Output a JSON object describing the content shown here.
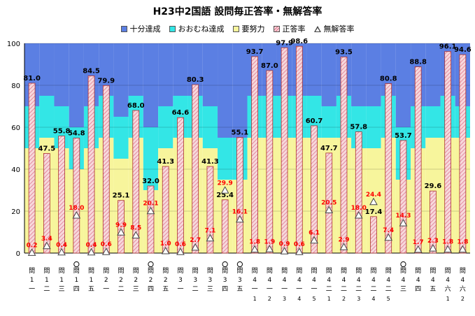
{
  "chart_data": {
    "type": "bar",
    "title": "H23中2国語  設問毎正答率・無解答率",
    "legend": [
      "十分達成",
      "おおむね達成",
      "要努力",
      "正答率",
      "無解答率"
    ],
    "colors": {
      "十分達成": "#5b7fe3",
      "おおむね達成": "#33e6e6",
      "要努力": "#f7f59c",
      "正答率_fill": "#f6d9dc",
      "正答率_stripe": "#e06a86",
      "無解答率": "#444444",
      "無解答率_label": "#ff0000"
    },
    "ylim": [
      0,
      100
    ],
    "yticks": [
      0,
      20,
      40,
      60,
      80,
      100
    ],
    "categories": [
      {
        "label": [
          "問",
          "1",
          "一"
        ],
        "circle": false
      },
      {
        "label": [
          "問",
          "1",
          "二"
        ],
        "circle": false
      },
      {
        "label": [
          "問",
          "1",
          "三"
        ],
        "circle": false
      },
      {
        "label": [
          "問",
          "1",
          "四"
        ],
        "circle": true
      },
      {
        "label": [
          "問",
          "1",
          "五"
        ],
        "circle": false
      },
      {
        "label": [
          "問",
          "2",
          "一"
        ],
        "circle": false
      },
      {
        "label": [
          "問",
          "2",
          "二"
        ],
        "circle": false
      },
      {
        "label": [
          "問",
          "2",
          "三"
        ],
        "circle": false
      },
      {
        "label": [
          "問",
          "2",
          "四"
        ],
        "circle": true
      },
      {
        "label": [
          "問",
          "2",
          "五"
        ],
        "circle": false
      },
      {
        "label": [
          "問",
          "3",
          "一"
        ],
        "circle": false
      },
      {
        "label": [
          "問",
          "3",
          "二"
        ],
        "circle": false
      },
      {
        "label": [
          "問",
          "3",
          "三"
        ],
        "circle": false
      },
      {
        "label": [
          "問",
          "3",
          "四"
        ],
        "circle": true
      },
      {
        "label": [
          "問",
          "3",
          "五"
        ],
        "circle": true
      },
      {
        "label": [
          "問",
          "4",
          "一",
          "1"
        ],
        "circle": false
      },
      {
        "label": [
          "問",
          "4",
          "一",
          "2"
        ],
        "circle": false
      },
      {
        "label": [
          "問",
          "4",
          "一",
          "3"
        ],
        "circle": false
      },
      {
        "label": [
          "問",
          "4",
          "一",
          "4"
        ],
        "circle": false
      },
      {
        "label": [
          "問",
          "4",
          "一",
          "5"
        ],
        "circle": false
      },
      {
        "label": [
          "問",
          "4",
          "二",
          "1"
        ],
        "circle": false
      },
      {
        "label": [
          "問",
          "4",
          "二",
          "2"
        ],
        "circle": false
      },
      {
        "label": [
          "問",
          "4",
          "二",
          "3"
        ],
        "circle": false
      },
      {
        "label": [
          "問",
          "4",
          "二",
          "4"
        ],
        "circle": false
      },
      {
        "label": [
          "問",
          "4",
          "二",
          "5"
        ],
        "circle": false
      },
      {
        "label": [
          "問",
          "4",
          "三"
        ],
        "circle": true
      },
      {
        "label": [
          "問",
          "4",
          "四"
        ],
        "circle": false
      },
      {
        "label": [
          "問",
          "4",
          "五"
        ],
        "circle": false
      },
      {
        "label": [
          "問",
          "4",
          "六",
          "1"
        ],
        "circle": false
      },
      {
        "label": [
          "問",
          "4",
          "六",
          "2"
        ],
        "circle": false
      }
    ],
    "bands": {
      "要努力_upper": [
        50,
        55,
        50,
        40,
        50,
        55,
        45,
        55,
        30,
        50,
        55,
        55,
        50,
        35,
        35,
        55,
        55,
        55,
        55,
        55,
        55,
        55,
        50,
        50,
        55,
        35,
        50,
        55,
        55,
        55
      ],
      "おおむね_upper": [
        70,
        75,
        70,
        60,
        70,
        75,
        65,
        75,
        60,
        70,
        75,
        75,
        70,
        55,
        55,
        75,
        75,
        75,
        75,
        75,
        70,
        75,
        70,
        70,
        75,
        60,
        70,
        70,
        75,
        70
      ]
    },
    "series": [
      {
        "name": "正答率",
        "values": [
          81.0,
          47.5,
          55.8,
          54.8,
          84.5,
          79.9,
          25.1,
          68.0,
          32.0,
          41.3,
          64.6,
          80.3,
          41.3,
          25.4,
          55.1,
          93.7,
          87.0,
          97.9,
          98.6,
          60.7,
          47.7,
          93.5,
          57.8,
          17.4,
          80.8,
          53.7,
          88.8,
          29.6,
          96.1,
          94.6
        ]
      },
      {
        "name": "無解答率",
        "values": [
          0.2,
          3.4,
          0.4,
          18.0,
          0.4,
          0.6,
          9.9,
          8.5,
          20.1,
          1.0,
          0.6,
          2.7,
          7.1,
          29.9,
          16.1,
          1.8,
          1.9,
          0.9,
          0.6,
          6.1,
          20.5,
          2.9,
          18.0,
          24.4,
          7.4,
          14.3,
          1.7,
          2.3,
          1.8,
          1.8
        ]
      }
    ]
  }
}
